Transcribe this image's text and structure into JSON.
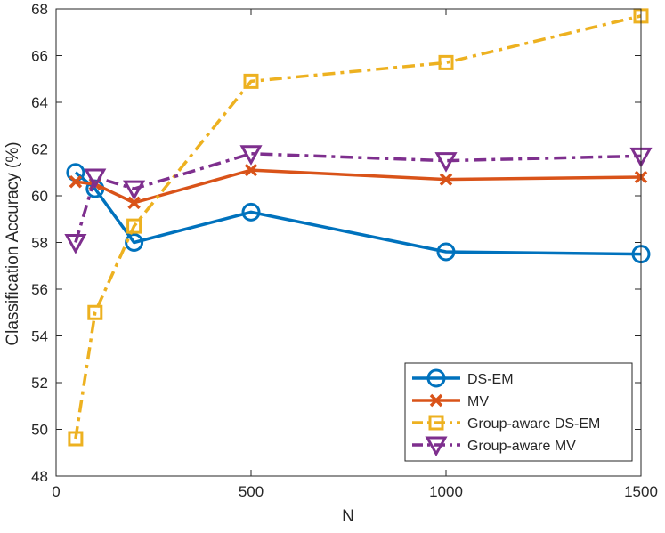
{
  "chart_data": {
    "type": "line",
    "title": "",
    "xlabel": "N",
    "ylabel": "Classification Accuracy (%)",
    "xlim": [
      0,
      1500
    ],
    "ylim": [
      48,
      68
    ],
    "xticks": [
      0,
      500,
      1000,
      1500
    ],
    "yticks": [
      48,
      50,
      52,
      54,
      56,
      58,
      60,
      62,
      64,
      66,
      68
    ],
    "grid": false,
    "legend_position": "bottom-right",
    "x": [
      50,
      100,
      200,
      500,
      1000,
      1500
    ],
    "series": [
      {
        "name": "DS-EM",
        "values": [
          61.0,
          60.3,
          58.0,
          59.3,
          57.6,
          57.5
        ],
        "color": "#0072BD",
        "marker": "circle",
        "line": "solid"
      },
      {
        "name": "MV",
        "values": [
          60.6,
          60.5,
          59.7,
          61.1,
          60.7,
          60.8
        ],
        "color": "#D95319",
        "marker": "x",
        "line": "solid"
      },
      {
        "name": "Group-aware DS-EM",
        "values": [
          49.6,
          55.0,
          58.7,
          64.9,
          65.7,
          67.7
        ],
        "color": "#EDB120",
        "marker": "square",
        "line": "dashdot"
      },
      {
        "name": "Group-aware MV",
        "values": [
          58.0,
          60.8,
          60.3,
          61.8,
          61.5,
          61.7
        ],
        "color": "#7E2F8E",
        "marker": "triangle-down",
        "line": "dashdot"
      }
    ]
  }
}
